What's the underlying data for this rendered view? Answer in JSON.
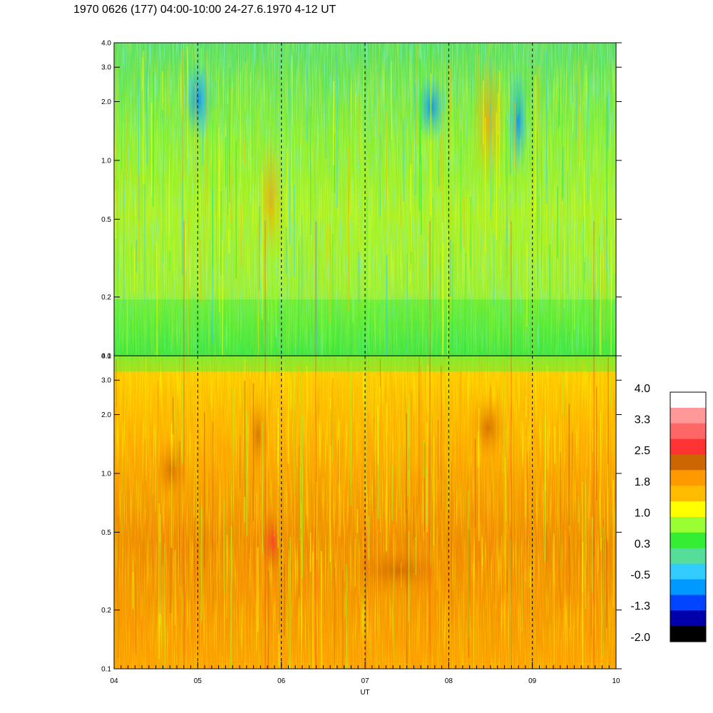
{
  "title": "1970 0626 (177) 04:00-10:00 24-27.6.1970  4-12 UT",
  "chart_data": [
    {
      "type": "heatmap",
      "panel": "upper",
      "xlabel": "",
      "ylabel": "",
      "xlim": [
        4,
        10
      ],
      "ylim": [
        0.1,
        4.0
      ],
      "yscale": "log",
      "yticks": [
        "0.1",
        "0.2",
        "0.5",
        "1.0",
        "2.0",
        "3.0",
        "4.0"
      ],
      "yticks_values": [
        0.1,
        0.2,
        0.5,
        1.0,
        2.0,
        3.0,
        4.0
      ],
      "dashed_hour_lines": [
        5,
        6,
        7,
        8,
        9
      ],
      "dominant_levels": "green to yellow, blue patches near 05 and 07.8 at 1-3"
    },
    {
      "type": "heatmap",
      "panel": "lower",
      "xlabel": "UT",
      "ylabel": "",
      "xlim": [
        4,
        10
      ],
      "ylim": [
        0.1,
        4.0
      ],
      "yscale": "log",
      "yticks": [
        "0.1",
        "0.2",
        "0.5",
        "1.0",
        "2.0",
        "3.0",
        "4.0"
      ],
      "yticks_values": [
        0.1,
        0.2,
        0.5,
        1.0,
        2.0,
        3.0,
        4.0
      ],
      "xticks": [
        "04",
        "05",
        "06",
        "07",
        "08",
        "09",
        "10"
      ],
      "xticks_values": [
        4,
        5,
        6,
        7,
        8,
        9,
        10
      ],
      "dashed_hour_lines": [
        5,
        6,
        7,
        8,
        9
      ],
      "dominant_levels": "orange to dark orange, green near top"
    }
  ],
  "colorbar": {
    "labels": [
      "4.0",
      "3.3",
      "2.5",
      "1.8",
      "1.0",
      "0.3",
      "-0.5",
      "-1.3",
      "-2.0"
    ],
    "colors": [
      "#ffffff",
      "#ff9999",
      "#ff6666",
      "#ff3333",
      "#cc6600",
      "#ff9900",
      "#ffbb00",
      "#ffff00",
      "#99ff33",
      "#33ee33",
      "#55dd99",
      "#33ccff",
      "#0099ff",
      "#0044ff",
      "#0000aa",
      "#000000"
    ]
  }
}
